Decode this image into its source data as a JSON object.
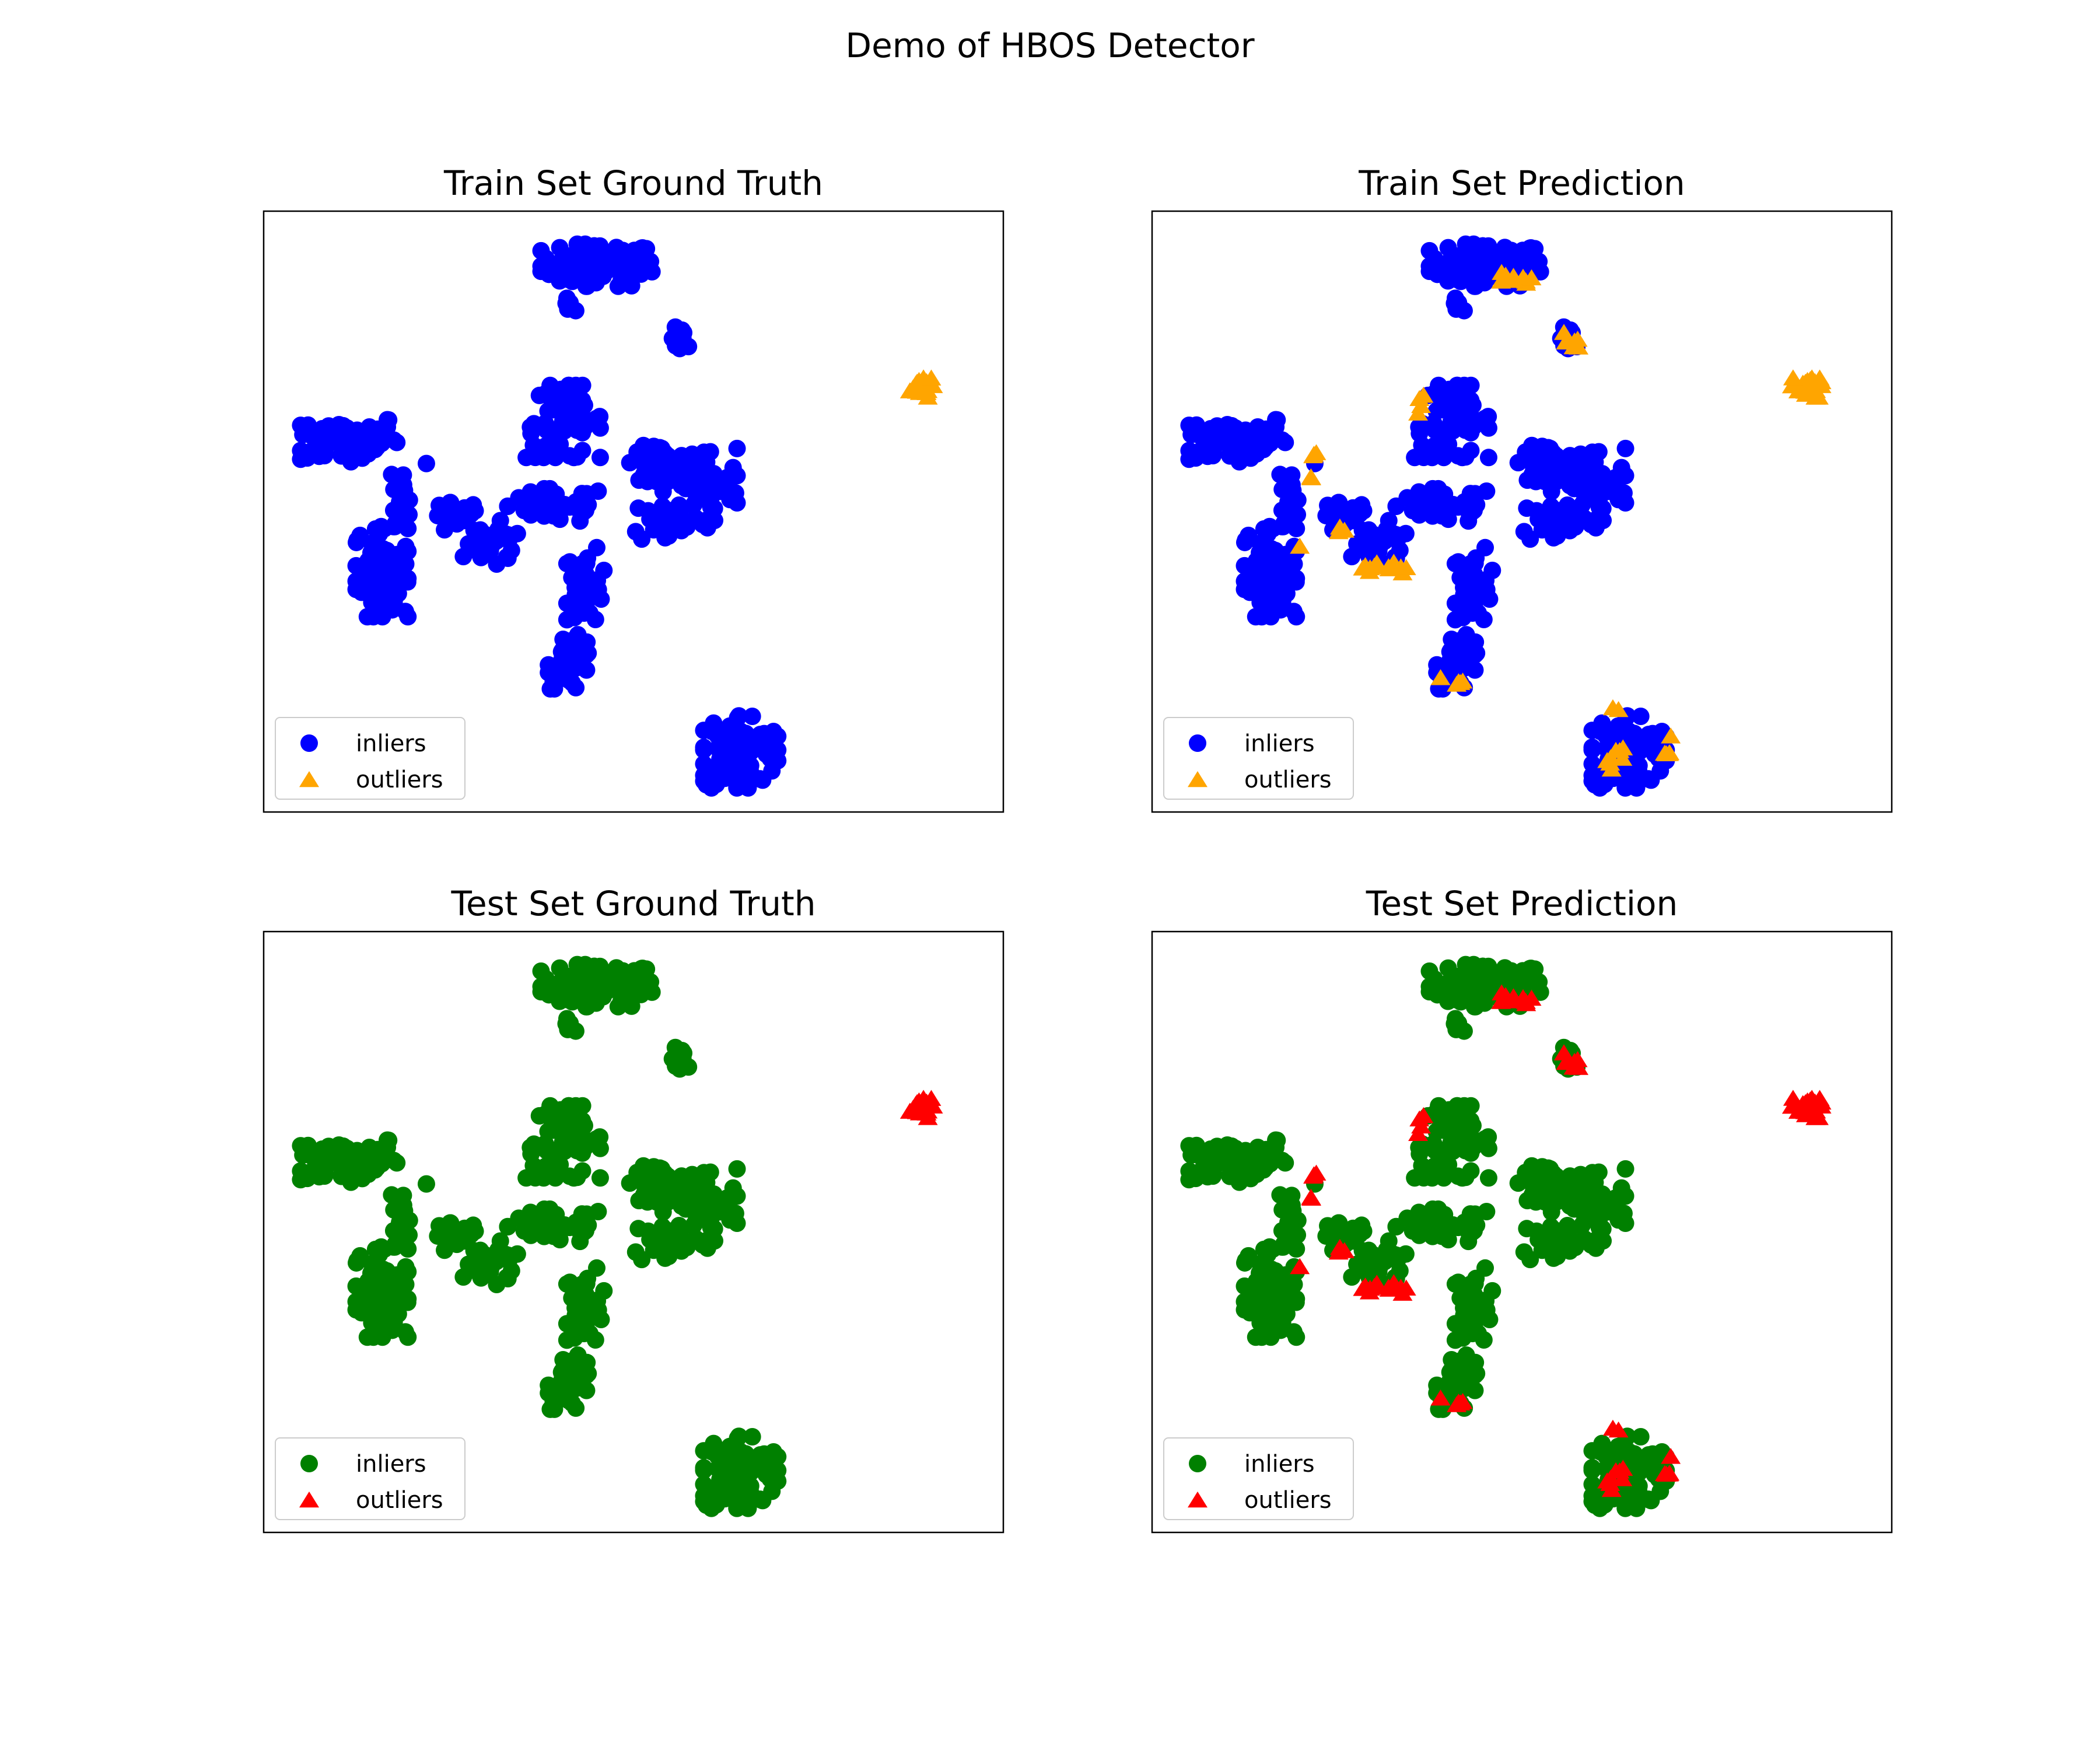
{
  "figure": {
    "title": "Demo of HBOS Detector"
  },
  "colors": {
    "train_inlier": "#0000ff",
    "train_outlier": "#ffa500",
    "test_inlier": "#008000",
    "test_outlier": "#ff0000",
    "axes_edge": "#000000",
    "legend_edge": "#cccccc"
  },
  "chart_data": [
    {
      "type": "scatter",
      "title": "Train Set Ground Truth",
      "xlabel": "",
      "ylabel": "",
      "xlim": [
        0,
        100
      ],
      "ylim": [
        0,
        100
      ],
      "grid": false,
      "ticks": false,
      "legend": {
        "placement": "lower-left",
        "entries": [
          "inliers",
          "outliers"
        ]
      },
      "palette": "train",
      "show_predicted_outliers": false,
      "series": [
        {
          "name": "inliers",
          "marker": "circle",
          "role": "inlier"
        },
        {
          "name": "outliers",
          "marker": "triangle",
          "role": "outlier"
        }
      ]
    },
    {
      "type": "scatter",
      "title": "Train Set Prediction",
      "xlabel": "",
      "ylabel": "",
      "xlim": [
        0,
        100
      ],
      "ylim": [
        0,
        100
      ],
      "grid": false,
      "ticks": false,
      "legend": {
        "placement": "lower-left",
        "entries": [
          "inliers",
          "outliers"
        ]
      },
      "palette": "train",
      "show_predicted_outliers": true,
      "series": [
        {
          "name": "inliers",
          "marker": "circle",
          "role": "inlier"
        },
        {
          "name": "outliers",
          "marker": "triangle",
          "role": "outlier"
        }
      ]
    },
    {
      "type": "scatter",
      "title": "Test Set Ground Truth",
      "xlabel": "",
      "ylabel": "",
      "xlim": [
        0,
        100
      ],
      "ylim": [
        0,
        100
      ],
      "grid": false,
      "ticks": false,
      "legend": {
        "placement": "lower-left",
        "entries": [
          "inliers",
          "outliers"
        ]
      },
      "palette": "test",
      "show_predicted_outliers": false,
      "series": [
        {
          "name": "inliers",
          "marker": "circle",
          "role": "inlier"
        },
        {
          "name": "outliers",
          "marker": "triangle",
          "role": "outlier"
        }
      ]
    },
    {
      "type": "scatter",
      "title": "Test Set Prediction",
      "xlabel": "",
      "ylabel": "",
      "xlim": [
        0,
        100
      ],
      "ylim": [
        0,
        100
      ],
      "grid": false,
      "ticks": false,
      "legend": {
        "placement": "lower-left",
        "entries": [
          "inliers",
          "outliers"
        ]
      },
      "palette": "test",
      "show_predicted_outliers": true,
      "series": [
        {
          "name": "inliers",
          "marker": "circle",
          "role": "inlier"
        },
        {
          "name": "outliers",
          "marker": "triangle",
          "role": "outlier"
        }
      ]
    }
  ],
  "clusters": [
    {
      "cx": 45,
      "cy": 91,
      "rx": 7.5,
      "ry": 3.5,
      "n": 90
    },
    {
      "cx": 41.5,
      "cy": 84,
      "rx": 1.2,
      "ry": 1.5,
      "n": 6
    },
    {
      "cx": 56.5,
      "cy": 78.5,
      "rx": 1.3,
      "ry": 2.2,
      "n": 8
    },
    {
      "cx": 11.5,
      "cy": 62,
      "rx": 6.5,
      "ry": 4,
      "n": 70
    },
    {
      "cx": 18.5,
      "cy": 53,
      "rx": 1.2,
      "ry": 5,
      "n": 20
    },
    {
      "cx": 16,
      "cy": 40,
      "rx": 3.5,
      "ry": 7.5,
      "n": 90
    },
    {
      "cx": 40.5,
      "cy": 65,
      "rx": 5,
      "ry": 6,
      "n": 60
    },
    {
      "cx": 39.5,
      "cy": 51,
      "rx": 6.5,
      "ry": 2.8,
      "n": 50
    },
    {
      "cx": 26,
      "cy": 49,
      "rx": 3,
      "ry": 2.5,
      "n": 22
    },
    {
      "cx": 31,
      "cy": 44,
      "rx": 4,
      "ry": 3,
      "n": 26
    },
    {
      "cx": 43.5,
      "cy": 38,
      "rx": 2.5,
      "ry": 6,
      "n": 40
    },
    {
      "cx": 41.5,
      "cy": 25,
      "rx": 3,
      "ry": 4.5,
      "n": 34
    },
    {
      "cx": 53,
      "cy": 58,
      "rx": 3.5,
      "ry": 3,
      "n": 40
    },
    {
      "cx": 59,
      "cy": 54.5,
      "rx": 5,
      "ry": 6,
      "n": 60
    },
    {
      "cx": 55,
      "cy": 48.5,
      "rx": 5,
      "ry": 3.5,
      "n": 34
    },
    {
      "cx": 64.5,
      "cy": 10,
      "rx": 5,
      "ry": 6,
      "n": 90
    }
  ],
  "singles": [
    {
      "x": 32,
      "y": 48.5
    },
    {
      "x": 22,
      "y": 58
    }
  ],
  "true_outliers": [
    {
      "cx": 88.5,
      "cy": 70.5,
      "rx": 2,
      "ry": 1.6,
      "n": 22
    }
  ],
  "predicted_outliers": [
    {
      "cx": 48.5,
      "cy": 88.5,
      "rx": 2.8,
      "ry": 1.2,
      "n": 10
    },
    {
      "cx": 56.5,
      "cy": 78,
      "rx": 1.2,
      "ry": 2,
      "n": 6
    },
    {
      "cx": 88.5,
      "cy": 70.5,
      "rx": 2,
      "ry": 1.6,
      "n": 14
    },
    {
      "cx": 36.5,
      "cy": 68,
      "rx": 0.8,
      "ry": 2.2,
      "n": 4
    },
    {
      "cx": 21,
      "cy": 58,
      "rx": 1.2,
      "ry": 3,
      "n": 5
    },
    {
      "cx": 20,
      "cy": 44.5,
      "rx": 0.5,
      "ry": 0.5,
      "n": 1
    },
    {
      "cx": 25.5,
      "cy": 46.5,
      "rx": 1,
      "ry": 0.8,
      "n": 3
    },
    {
      "cx": 31.5,
      "cy": 40.5,
      "rx": 3,
      "ry": 1.2,
      "n": 14
    },
    {
      "cx": 40.5,
      "cy": 22,
      "rx": 1.5,
      "ry": 1,
      "n": 5
    },
    {
      "cx": 63,
      "cy": 17,
      "rx": 0.8,
      "ry": 0.6,
      "n": 2
    },
    {
      "cx": 62.5,
      "cy": 9,
      "rx": 1.5,
      "ry": 2,
      "n": 8
    },
    {
      "cx": 69.5,
      "cy": 10,
      "rx": 0.8,
      "ry": 2.5,
      "n": 5
    }
  ]
}
